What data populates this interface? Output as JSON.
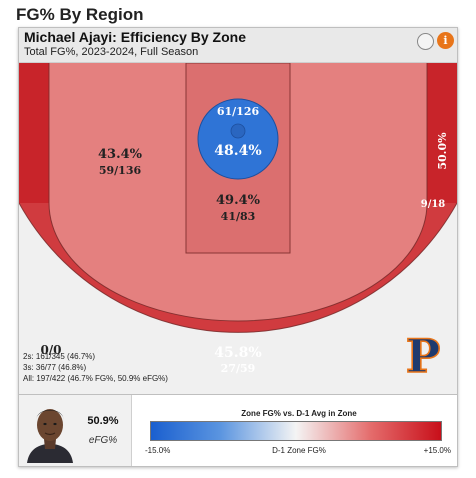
{
  "page": {
    "title": "FG% By Region"
  },
  "card": {
    "title": "Michael Ajayi: Efficiency By Zone",
    "subtitle": "Total FG%, 2023-2024, Full Season",
    "info_glyph": "i"
  },
  "chart_data": {
    "type": "shot-chart-zones",
    "title": "Michael Ajayi: Efficiency By Zone",
    "subtitle": "Total FG%, 2023-2024, Full Season",
    "zones": [
      {
        "id": "restricted-area",
        "pct": "48.4%",
        "made_attempts": "61/126",
        "made": 61,
        "attempts": 126,
        "color": "#2f74d6"
      },
      {
        "id": "paint",
        "pct": "49.4%",
        "made_attempts": "41/83",
        "made": 41,
        "attempts": 83,
        "color": "#db6f6f"
      },
      {
        "id": "midrange",
        "pct": "43.4%",
        "made_attempts": "59/136",
        "made": 59,
        "attempts": 136,
        "color": "#e4807f"
      },
      {
        "id": "right-corner-three",
        "pct": "50.0%",
        "made_attempts": "9/18",
        "made": 9,
        "attempts": 18,
        "color": "#c8242a"
      },
      {
        "id": "above-break-three",
        "pct": "45.8%",
        "made_attempts": "27/59",
        "made": 27,
        "attempts": 59,
        "color": "#d03b3f"
      },
      {
        "id": "left-corner-three",
        "pct": "",
        "made_attempts": "0/0",
        "made": 0,
        "attempts": 0,
        "color": "#c8242a"
      },
      {
        "id": "backcourt",
        "pct": "",
        "made_attempts": "0/0",
        "made": 0,
        "attempts": 0,
        "color": "#f0f0f0"
      }
    ],
    "summary": [
      "2s: 161/345 (46.7%)",
      "3s: 36/77 (46.8%)",
      "All: 197/422 (46.7% FG%, 50.9% eFG%)"
    ],
    "legend": {
      "title": "Zone FG% vs. D-1 Avg in Zone",
      "min_label": "-15.0%",
      "mid_label": "D-1 Zone FG%",
      "max_label": "+15.0%",
      "range": [
        -15.0,
        15.0
      ],
      "colors": [
        "#1a5fcf",
        "#f4f4f4",
        "#c80f1a"
      ]
    }
  },
  "player": {
    "efg_value": "50.9%",
    "efg_label": "eFG%"
  },
  "logo": {
    "letter": "P",
    "icon": "pepperdine-logo-icon"
  }
}
